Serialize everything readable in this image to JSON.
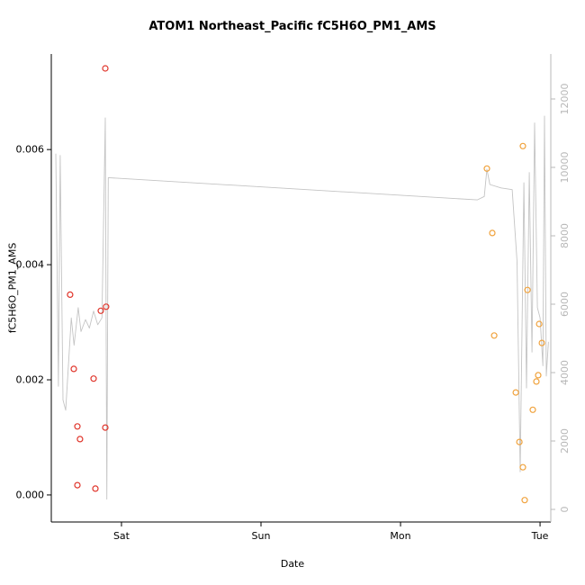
{
  "figure": {
    "background": "#ffffff",
    "title": "ATOM1 Northeast_Pacific fC5H6O_PM1_AMS",
    "xlabel": "Date",
    "ylabel": "fC5H6O_PM1_AMS"
  },
  "chart_data": {
    "type": "scatter",
    "title": "ATOM1 Northeast_Pacific fC5H6O_PM1_AMS",
    "xlabel": "Date",
    "ylabel": "fC5H6O_PM1_AMS",
    "grid": false,
    "legend": "none",
    "xlim": [
      -0.503,
      3.077
    ],
    "x_ticks": [
      {
        "label": "Sat",
        "x": 0
      },
      {
        "label": "Sun",
        "x": 1
      },
      {
        "label": "Mon",
        "x": 2
      },
      {
        "label": "Tue",
        "x": 3
      }
    ],
    "ylim_left": [
      -0.00047,
      0.00766
    ],
    "left_ticks": [
      {
        "value": 0.0,
        "label": "0.000"
      },
      {
        "value": 0.002,
        "label": "0.002"
      },
      {
        "value": 0.004,
        "label": "0.004"
      },
      {
        "value": 0.006,
        "label": "0.006"
      }
    ],
    "right_axis": {
      "lim": [
        -368,
        13315
      ],
      "color": "#b8b8b8",
      "ticks": [
        {
          "value": 0,
          "label": "0"
        },
        {
          "value": 2000,
          "label": "2000"
        },
        {
          "value": 4000,
          "label": "4000"
        },
        {
          "value": 6000,
          "label": "6000"
        },
        {
          "value": 8000,
          "label": "8000"
        },
        {
          "value": 10000,
          "label": "10000"
        },
        {
          "value": 12000,
          "label": "12000"
        }
      ]
    },
    "series": [
      {
        "name": "track-line",
        "type": "line",
        "axis": "right",
        "color": "#c4c4c4",
        "width": 0.9,
        "points": [
          [
            -0.471,
            10400
          ],
          [
            -0.452,
            3600
          ],
          [
            -0.439,
            10350
          ],
          [
            -0.419,
            3200
          ],
          [
            -0.4,
            2900
          ],
          [
            -0.36,
            5600
          ],
          [
            -0.34,
            4800
          ],
          [
            -0.31,
            5900
          ],
          [
            -0.29,
            5200
          ],
          [
            -0.258,
            5550
          ],
          [
            -0.23,
            5300
          ],
          [
            -0.2,
            5800
          ],
          [
            -0.17,
            5400
          ],
          [
            -0.14,
            5600
          ],
          [
            -0.116,
            11450
          ],
          [
            -0.105,
            300
          ],
          [
            -0.095,
            9700
          ],
          [
            2.55,
            9050
          ],
          [
            2.6,
            9150
          ],
          [
            2.619,
            9950
          ],
          [
            2.64,
            9500
          ],
          [
            2.72,
            9400
          ],
          [
            2.8,
            9350
          ],
          [
            2.835,
            7250
          ],
          [
            2.858,
            1100
          ],
          [
            2.884,
            9550
          ],
          [
            2.903,
            3550
          ],
          [
            2.923,
            9850
          ],
          [
            2.942,
            4600
          ],
          [
            2.961,
            11300
          ],
          [
            2.981,
            5900
          ],
          [
            3.0,
            5600
          ],
          [
            3.02,
            4200
          ],
          [
            3.032,
            11500
          ],
          [
            3.045,
            3900
          ],
          [
            3.06,
            4900
          ]
        ]
      },
      {
        "name": "red-samples",
        "type": "scatter",
        "axis": "left",
        "color": "#e0352b",
        "radius": 3,
        "points": [
          [
            -0.368,
            0.00348
          ],
          [
            -0.342,
            0.00219
          ],
          [
            -0.316,
            0.00119
          ],
          [
            -0.297,
            0.00097
          ],
          [
            -0.316,
            0.00017
          ],
          [
            -0.2,
            0.00202
          ],
          [
            -0.187,
            0.00011
          ],
          [
            -0.148,
            0.0032
          ],
          [
            -0.11,
            0.00327
          ],
          [
            -0.116,
            0.00741
          ],
          [
            -0.116,
            0.00117
          ]
        ]
      },
      {
        "name": "orange-samples",
        "type": "scatter",
        "axis": "left",
        "color": "#f0a23c",
        "radius": 3,
        "points": [
          [
            2.619,
            0.00567
          ],
          [
            2.658,
            0.00455
          ],
          [
            2.671,
            0.00277
          ],
          [
            2.826,
            0.00178
          ],
          [
            2.852,
            0.00092
          ],
          [
            2.877,
            0.00048
          ],
          [
            2.89,
            -9e-05
          ],
          [
            2.877,
            0.00606
          ],
          [
            2.91,
            0.00356
          ],
          [
            2.948,
            0.00148
          ],
          [
            2.974,
            0.00197
          ],
          [
            2.987,
            0.00208
          ],
          [
            2.994,
            0.00297
          ],
          [
            3.013,
            0.00264
          ]
        ]
      }
    ]
  }
}
